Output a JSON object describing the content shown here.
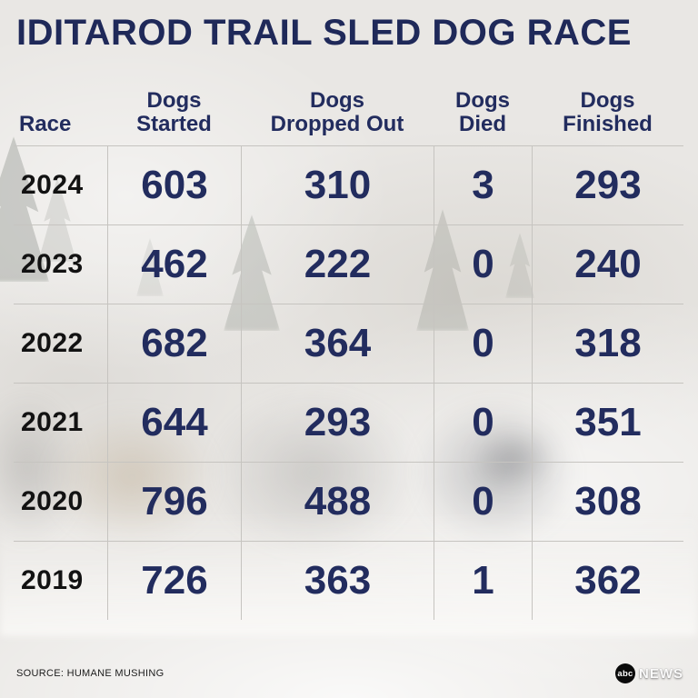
{
  "title": "IDITAROD TRAIL SLED DOG RACE",
  "source": "SOURCE: HUMANE MUSHING",
  "logo": {
    "abc": "abc",
    "news": "NEWS"
  },
  "colors": {
    "navy": "#222c5e",
    "year_black": "#121212",
    "grid_line": "#c6c4c0"
  },
  "chart_data": {
    "type": "table",
    "title": "IDITAROD TRAIL SLED DOG RACE",
    "columns": [
      "Race",
      "Dogs Started",
      "Dogs Dropped Out",
      "Dogs Died",
      "Dogs Finished"
    ],
    "rows": [
      {
        "race": "2024",
        "started": 603,
        "dropped_out": 310,
        "died": 3,
        "finished": 293
      },
      {
        "race": "2023",
        "started": 462,
        "dropped_out": 222,
        "died": 0,
        "finished": 240
      },
      {
        "race": "2022",
        "started": 682,
        "dropped_out": 364,
        "died": 0,
        "finished": 318
      },
      {
        "race": "2021",
        "started": 644,
        "dropped_out": 293,
        "died": 0,
        "finished": 351
      },
      {
        "race": "2020",
        "started": 796,
        "dropped_out": 488,
        "died": 0,
        "finished": 308
      },
      {
        "race": "2019",
        "started": 726,
        "dropped_out": 363,
        "died": 1,
        "finished": 362
      }
    ],
    "source": "HUMANE MUSHING"
  }
}
